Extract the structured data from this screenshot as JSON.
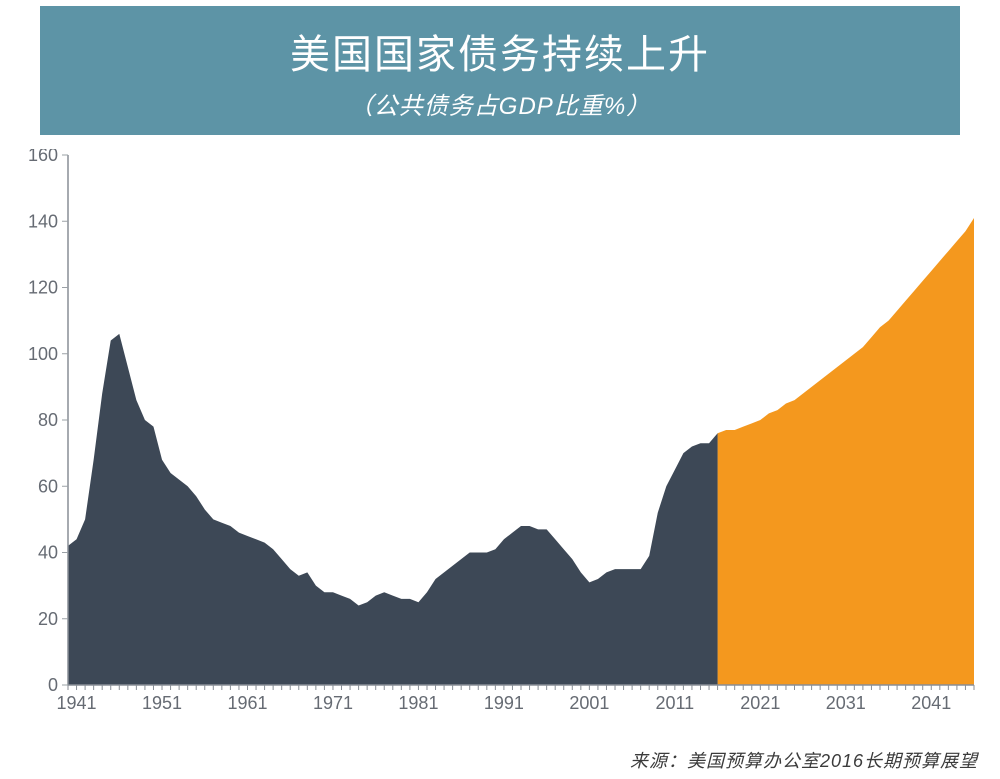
{
  "header": {
    "bg_color": "#5d94a6",
    "text_color": "#ffffff",
    "title": "美国国家债务持续上升",
    "subtitle": "（公共债务占GDP比重%）"
  },
  "source_line": "来源：美国预算办公室2016长期预算展望",
  "chart": {
    "type": "area",
    "background_color": "#ffffff",
    "axis_color": "#888e96",
    "tick_label_color": "#666b73",
    "tick_fontsize": 18,
    "xlim": [
      1940,
      2046
    ],
    "ylim": [
      0,
      160
    ],
    "ytick_step": 20,
    "xticks": [
      1941,
      1951,
      1961,
      1971,
      1981,
      1991,
      2001,
      2011,
      2021,
      2031,
      2041
    ],
    "xtick_minor_step": 1,
    "split_year": 2016,
    "historical_color": "#3d4856",
    "projection_color": "#f4981e",
    "data": [
      [
        1940,
        42
      ],
      [
        1941,
        44
      ],
      [
        1942,
        50
      ],
      [
        1943,
        68
      ],
      [
        1944,
        88
      ],
      [
        1945,
        104
      ],
      [
        1946,
        106
      ],
      [
        1947,
        96
      ],
      [
        1948,
        86
      ],
      [
        1949,
        80
      ],
      [
        1950,
        78
      ],
      [
        1951,
        68
      ],
      [
        1952,
        64
      ],
      [
        1953,
        62
      ],
      [
        1954,
        60
      ],
      [
        1955,
        57
      ],
      [
        1956,
        53
      ],
      [
        1957,
        50
      ],
      [
        1958,
        49
      ],
      [
        1959,
        48
      ],
      [
        1960,
        46
      ],
      [
        1961,
        45
      ],
      [
        1962,
        44
      ],
      [
        1963,
        43
      ],
      [
        1964,
        41
      ],
      [
        1965,
        38
      ],
      [
        1966,
        35
      ],
      [
        1967,
        33
      ],
      [
        1968,
        34
      ],
      [
        1969,
        30
      ],
      [
        1970,
        28
      ],
      [
        1971,
        28
      ],
      [
        1972,
        27
      ],
      [
        1973,
        26
      ],
      [
        1974,
        24
      ],
      [
        1975,
        25
      ],
      [
        1976,
        27
      ],
      [
        1977,
        28
      ],
      [
        1978,
        27
      ],
      [
        1979,
        26
      ],
      [
        1980,
        26
      ],
      [
        1981,
        25
      ],
      [
        1982,
        28
      ],
      [
        1983,
        32
      ],
      [
        1984,
        34
      ],
      [
        1985,
        36
      ],
      [
        1986,
        38
      ],
      [
        1987,
        40
      ],
      [
        1988,
        40
      ],
      [
        1989,
        40
      ],
      [
        1990,
        41
      ],
      [
        1991,
        44
      ],
      [
        1992,
        46
      ],
      [
        1993,
        48
      ],
      [
        1994,
        48
      ],
      [
        1995,
        47
      ],
      [
        1996,
        47
      ],
      [
        1997,
        44
      ],
      [
        1998,
        41
      ],
      [
        1999,
        38
      ],
      [
        2000,
        34
      ],
      [
        2001,
        31
      ],
      [
        2002,
        32
      ],
      [
        2003,
        34
      ],
      [
        2004,
        35
      ],
      [
        2005,
        35
      ],
      [
        2006,
        35
      ],
      [
        2007,
        35
      ],
      [
        2008,
        39
      ],
      [
        2009,
        52
      ],
      [
        2010,
        60
      ],
      [
        2011,
        65
      ],
      [
        2012,
        70
      ],
      [
        2013,
        72
      ],
      [
        2014,
        73
      ],
      [
        2015,
        73
      ],
      [
        2016,
        76
      ],
      [
        2017,
        77
      ],
      [
        2018,
        77
      ],
      [
        2019,
        78
      ],
      [
        2020,
        79
      ],
      [
        2021,
        80
      ],
      [
        2022,
        82
      ],
      [
        2023,
        83
      ],
      [
        2024,
        85
      ],
      [
        2025,
        86
      ],
      [
        2026,
        88
      ],
      [
        2027,
        90
      ],
      [
        2028,
        92
      ],
      [
        2029,
        94
      ],
      [
        2030,
        96
      ],
      [
        2031,
        98
      ],
      [
        2032,
        100
      ],
      [
        2033,
        102
      ],
      [
        2034,
        105
      ],
      [
        2035,
        108
      ],
      [
        2036,
        110
      ],
      [
        2037,
        113
      ],
      [
        2038,
        116
      ],
      [
        2039,
        119
      ],
      [
        2040,
        122
      ],
      [
        2041,
        125
      ],
      [
        2042,
        128
      ],
      [
        2043,
        131
      ],
      [
        2044,
        134
      ],
      [
        2045,
        137
      ],
      [
        2046,
        141
      ]
    ]
  }
}
